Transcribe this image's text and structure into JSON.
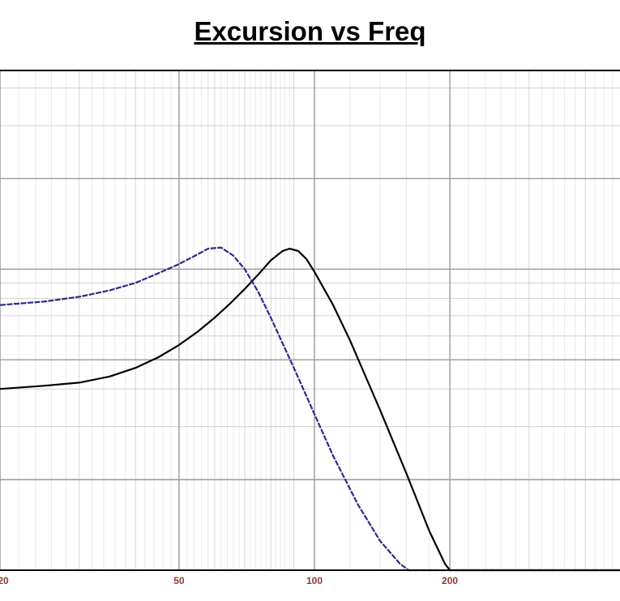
{
  "chart_data": {
    "type": "line",
    "title": "Excursion vs Freq",
    "xlabel": "",
    "ylabel": "",
    "x_scale": "log",
    "xlim": [
      20,
      500
    ],
    "y_scale": "log",
    "grid": true,
    "x_tick_labels": [
      "20",
      "50",
      "100",
      "200"
    ],
    "series": [
      {
        "color": "#000000",
        "line_style": "solid",
        "points": [
          [
            20,
            0.4
          ],
          [
            25,
            0.41
          ],
          [
            30,
            0.42
          ],
          [
            35,
            0.44
          ],
          [
            40,
            0.47
          ],
          [
            45,
            0.51
          ],
          [
            50,
            0.56
          ],
          [
            55,
            0.62
          ],
          [
            60,
            0.69
          ],
          [
            65,
            0.77
          ],
          [
            70,
            0.86
          ],
          [
            75,
            0.96
          ],
          [
            80,
            1.07
          ],
          [
            85,
            1.15
          ],
          [
            88,
            1.17
          ],
          [
            92,
            1.15
          ],
          [
            96,
            1.08
          ],
          [
            100,
            0.98
          ],
          [
            110,
            0.76
          ],
          [
            120,
            0.58
          ],
          [
            140,
            0.34
          ],
          [
            160,
            0.21
          ],
          [
            180,
            0.135
          ],
          [
            195,
            0.105
          ],
          [
            200,
            0.1
          ]
        ]
      },
      {
        "color": "#2b2b8c",
        "line_style": "dashed",
        "points": [
          [
            20,
            0.76
          ],
          [
            25,
            0.78
          ],
          [
            30,
            0.81
          ],
          [
            35,
            0.85
          ],
          [
            40,
            0.9
          ],
          [
            45,
            0.97
          ],
          [
            50,
            1.04
          ],
          [
            55,
            1.12
          ],
          [
            58,
            1.17
          ],
          [
            62,
            1.18
          ],
          [
            66,
            1.11
          ],
          [
            70,
            1.0
          ],
          [
            75,
            0.84
          ],
          [
            80,
            0.69
          ],
          [
            90,
            0.47
          ],
          [
            100,
            0.33
          ],
          [
            110,
            0.24
          ],
          [
            125,
            0.165
          ],
          [
            140,
            0.125
          ],
          [
            155,
            0.105
          ],
          [
            162,
            0.1
          ]
        ]
      }
    ]
  }
}
